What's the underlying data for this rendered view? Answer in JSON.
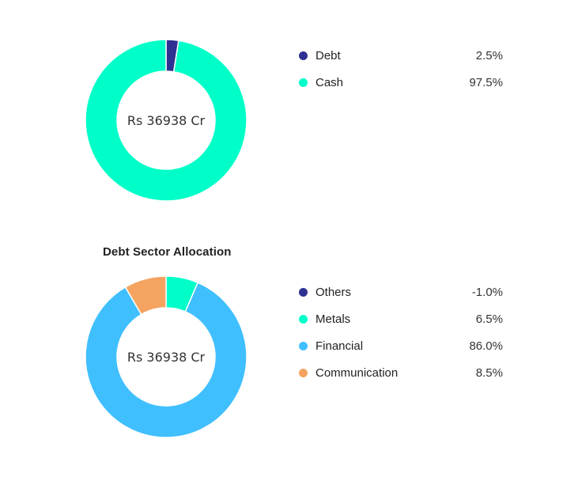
{
  "chart_data": [
    {
      "type": "pie",
      "subtype": "donut",
      "title": "",
      "center_label": "Rs 36938 Cr",
      "categories": [
        "Debt",
        "Cash"
      ],
      "values": [
        2.5,
        97.5
      ],
      "value_labels": [
        "2.5%",
        "97.5%"
      ],
      "colors": [
        "#2e3192",
        "#00ffc8"
      ],
      "legend_position": "right"
    },
    {
      "type": "pie",
      "subtype": "donut",
      "title": "Debt Sector Allocation",
      "center_label": "Rs 36938 Cr",
      "categories": [
        "Others",
        "Metals",
        "Financial",
        "Communication"
      ],
      "values": [
        -1.0,
        6.5,
        86.0,
        8.5
      ],
      "value_labels": [
        "-1.0%",
        "6.5%",
        "86.0%",
        "8.5%"
      ],
      "colors": [
        "#2e3192",
        "#00ffc8",
        "#40bfff",
        "#f4a460"
      ],
      "legend_position": "right"
    }
  ],
  "asset_allocation": {
    "center_label": "Rs 36938 Cr",
    "legend": [
      {
        "label": "Debt",
        "value": "2.5%",
        "color": "#2e3192"
      },
      {
        "label": "Cash",
        "value": "97.5%",
        "color": "#00ffc8"
      }
    ]
  },
  "sector_allocation": {
    "title": "Debt Sector Allocation",
    "center_label": "Rs 36938 Cr",
    "legend": [
      {
        "label": "Others",
        "value": "-1.0%",
        "color": "#2e3192"
      },
      {
        "label": "Metals",
        "value": "6.5%",
        "color": "#00ffc8"
      },
      {
        "label": "Financial",
        "value": "86.0%",
        "color": "#40bfff"
      },
      {
        "label": "Communication",
        "value": "8.5%",
        "color": "#f4a460"
      }
    ]
  }
}
